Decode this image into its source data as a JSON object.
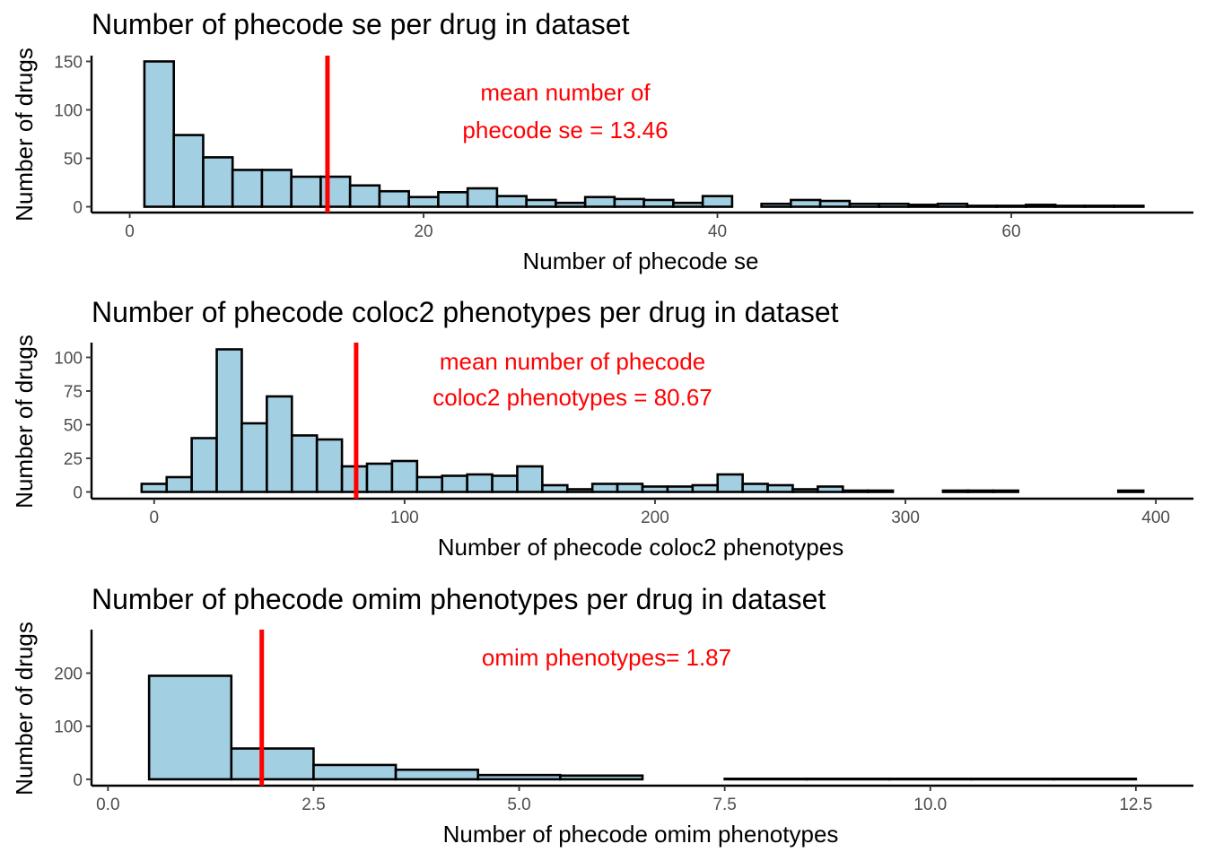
{
  "chart_data": [
    {
      "type": "bar",
      "title": "Number of phecode se per drug in dataset",
      "xlabel": "Number of phecode se",
      "ylabel": "Number of drugs",
      "xlim": [
        -2.6,
        72.4
      ],
      "ylim": [
        -6,
        156
      ],
      "xticks": [
        0,
        20,
        40,
        60
      ],
      "xtick_labels": [
        "0",
        "20",
        "40",
        "60"
      ],
      "yticks": [
        0,
        50,
        100,
        150
      ],
      "ytick_labels": [
        "0",
        "50",
        "100",
        "150"
      ],
      "bin_width": 2,
      "bin_start": 1,
      "values": [
        150,
        74,
        51,
        38,
        38,
        31,
        31,
        22,
        16,
        10,
        15,
        19,
        11,
        7,
        4,
        10,
        8,
        7,
        4,
        11,
        0,
        3,
        7,
        6,
        3,
        3,
        2,
        3,
        1,
        1,
        2,
        1,
        1,
        1
      ],
      "fill_color": "#a2d0e2",
      "edge_color": "#000000",
      "mean_value": 13.46,
      "mean_line_color": "#ff0000",
      "annotation": [
        "mean number of",
        "phecode se = 13.46"
      ],
      "annotation_color": "#ff0000",
      "grid": false,
      "legend": "none"
    },
    {
      "type": "bar",
      "title": "Number of phecode coloc2  phenotypes per drug in dataset",
      "xlabel": "Number of phecode coloc2 phenotypes",
      "ylabel": "Number of drugs",
      "xlim": [
        -25,
        415
      ],
      "ylim": [
        -5,
        111
      ],
      "xticks": [
        0,
        100,
        200,
        300,
        400
      ],
      "xtick_labels": [
        "0",
        "100",
        "200",
        "300",
        "400"
      ],
      "yticks": [
        0,
        25,
        50,
        75,
        100
      ],
      "ytick_labels": [
        "0",
        "25",
        "50",
        "75",
        "100"
      ],
      "bin_width": 10,
      "bin_start": -5,
      "values": [
        6,
        11,
        40,
        106,
        51,
        71,
        42,
        39,
        19,
        21,
        23,
        11,
        12,
        13,
        12,
        19,
        5,
        2,
        6,
        6,
        4,
        4,
        5,
        13,
        6,
        5,
        2,
        4,
        1,
        1,
        0,
        0,
        1,
        1,
        1,
        0,
        0,
        0,
        0,
        1
      ],
      "fill_color": "#a2d0e2",
      "edge_color": "#000000",
      "mean_value": 80.67,
      "mean_line_color": "#ff0000",
      "annotation": [
        "mean number of phecode",
        "coloc2 phenotypes = 80.67"
      ],
      "annotation_color": "#ff0000",
      "grid": false,
      "legend": "none"
    },
    {
      "type": "bar",
      "title": "Number of phecode omim phenotypes per drug in dataset",
      "xlabel": "Number of phecode omim phenotypes",
      "ylabel": "Number of drugs",
      "xlim": [
        -0.2,
        13.2
      ],
      "ylim": [
        -12,
        282
      ],
      "xticks": [
        0.0,
        2.5,
        5.0,
        7.5,
        10.0,
        12.5
      ],
      "xtick_labels": [
        "0.0",
        "2.5",
        "5.0",
        "7.5",
        "10.0",
        "12.5"
      ],
      "yticks": [
        0,
        100,
        200
      ],
      "ytick_labels": [
        "0",
        "100",
        "200"
      ],
      "bin_width": 1,
      "bin_start": 0.5,
      "values": [
        195,
        58,
        27,
        18,
        8,
        7,
        0,
        1,
        1,
        1,
        1,
        1
      ],
      "fill_color": "#a2d0e2",
      "edge_color": "#000000",
      "mean_value": 1.87,
      "mean_line_color": "#ff0000",
      "annotation": [
        "omim phenotypes= 1.87"
      ],
      "annotation_color": "#ff0000",
      "grid": false,
      "legend": "none"
    }
  ]
}
